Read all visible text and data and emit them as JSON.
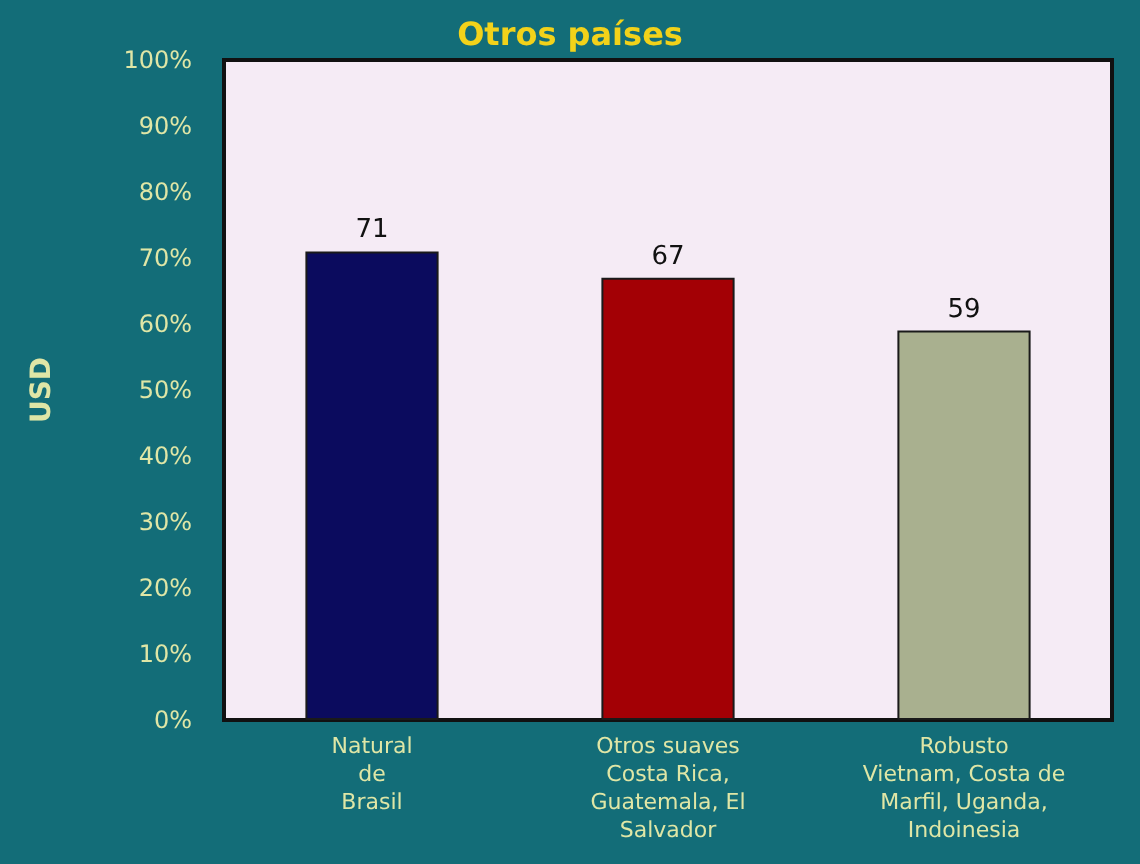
{
  "chart_data": {
    "type": "bar",
    "title": "Otros países",
    "ylabel": "USD",
    "categories": [
      "Natural\nde\nBrasil",
      "Otros suaves\nCosta Rica,\nGuatemala, El\nSalvador",
      "Robusto\nVietnam, Costa de\nMarfil, Uganda,\nIndoinesia"
    ],
    "values": [
      71,
      67,
      59
    ],
    "colors": [
      "#0b0b5e",
      "#a30005",
      "#a9b08f"
    ],
    "ylim": [
      0,
      100
    ],
    "yticks": [
      {
        "value": 0,
        "label": "0%"
      },
      {
        "value": 10,
        "label": "10%"
      },
      {
        "value": 20,
        "label": "20%"
      },
      {
        "value": 30,
        "label": "30%"
      },
      {
        "value": 40,
        "label": "40%"
      },
      {
        "value": 50,
        "label": "50%"
      },
      {
        "value": 60,
        "label": "60%"
      },
      {
        "value": 70,
        "label": "70%"
      },
      {
        "value": 80,
        "label": "80%"
      },
      {
        "value": 90,
        "label": "90%"
      },
      {
        "value": 100,
        "label": "100%"
      }
    ],
    "data_labels": true
  }
}
